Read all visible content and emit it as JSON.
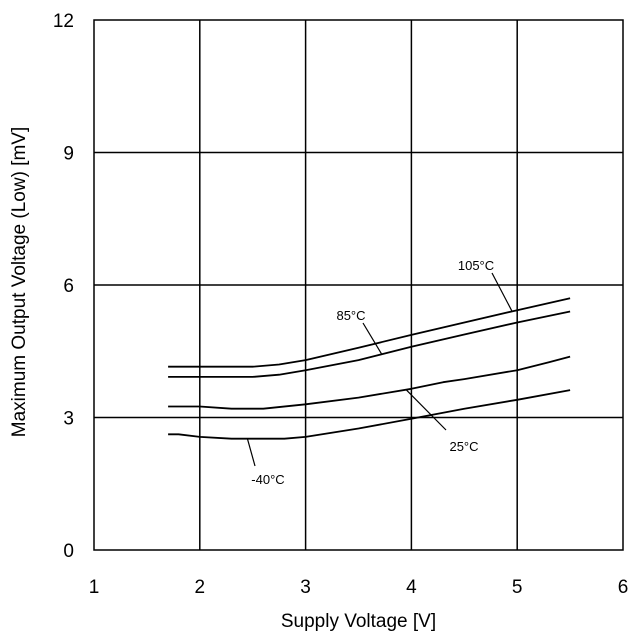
{
  "chart_data": {
    "type": "line",
    "title": "",
    "xlabel": "Supply Voltage [V]",
    "ylabel": "Maximum Output Voltage (Low) [mV]",
    "xlim": [
      1,
      6
    ],
    "ylim": [
      0,
      12
    ],
    "xticks": [
      1,
      2,
      3,
      4,
      5,
      6
    ],
    "yticks": [
      0,
      3,
      6,
      9,
      12
    ],
    "grid": true,
    "line_color": "#000000",
    "series": [
      {
        "name": "105°C",
        "points": [
          [
            1.7,
            4.15
          ],
          [
            2.0,
            4.15
          ],
          [
            2.5,
            4.15
          ],
          [
            2.75,
            4.2
          ],
          [
            3.0,
            4.3
          ],
          [
            3.5,
            4.58
          ],
          [
            4.0,
            4.87
          ],
          [
            4.5,
            5.15
          ],
          [
            5.0,
            5.43
          ],
          [
            5.5,
            5.7
          ]
        ]
      },
      {
        "name": "85°C",
        "points": [
          [
            1.7,
            3.92
          ],
          [
            2.0,
            3.92
          ],
          [
            2.5,
            3.92
          ],
          [
            2.75,
            3.97
          ],
          [
            3.0,
            4.07
          ],
          [
            3.5,
            4.3
          ],
          [
            4.0,
            4.6
          ],
          [
            4.5,
            4.88
          ],
          [
            5.0,
            5.15
          ],
          [
            5.5,
            5.4
          ]
        ]
      },
      {
        "name": "25°C",
        "points": [
          [
            1.7,
            3.25
          ],
          [
            2.0,
            3.25
          ],
          [
            2.3,
            3.2
          ],
          [
            2.6,
            3.2
          ],
          [
            3.0,
            3.3
          ],
          [
            3.5,
            3.45
          ],
          [
            4.0,
            3.65
          ],
          [
            4.3,
            3.8
          ],
          [
            4.5,
            3.87
          ],
          [
            5.0,
            4.07
          ],
          [
            5.3,
            4.25
          ],
          [
            5.5,
            4.38
          ]
        ]
      },
      {
        "name": "-40°C",
        "points": [
          [
            1.7,
            2.62
          ],
          [
            1.8,
            2.62
          ],
          [
            2.0,
            2.56
          ],
          [
            2.3,
            2.52
          ],
          [
            2.5,
            2.52
          ],
          [
            2.8,
            2.52
          ],
          [
            3.0,
            2.56
          ],
          [
            3.5,
            2.75
          ],
          [
            4.0,
            2.97
          ],
          [
            4.5,
            3.2
          ],
          [
            5.0,
            3.4
          ],
          [
            5.5,
            3.62
          ]
        ]
      }
    ],
    "annotations": [
      {
        "text": "105°C",
        "series": "105°C"
      },
      {
        "text": "85°C",
        "series": "85°C"
      },
      {
        "text": "25°C",
        "series": "25°C"
      },
      {
        "text": "-40°C",
        "series": "-40°C"
      }
    ]
  }
}
